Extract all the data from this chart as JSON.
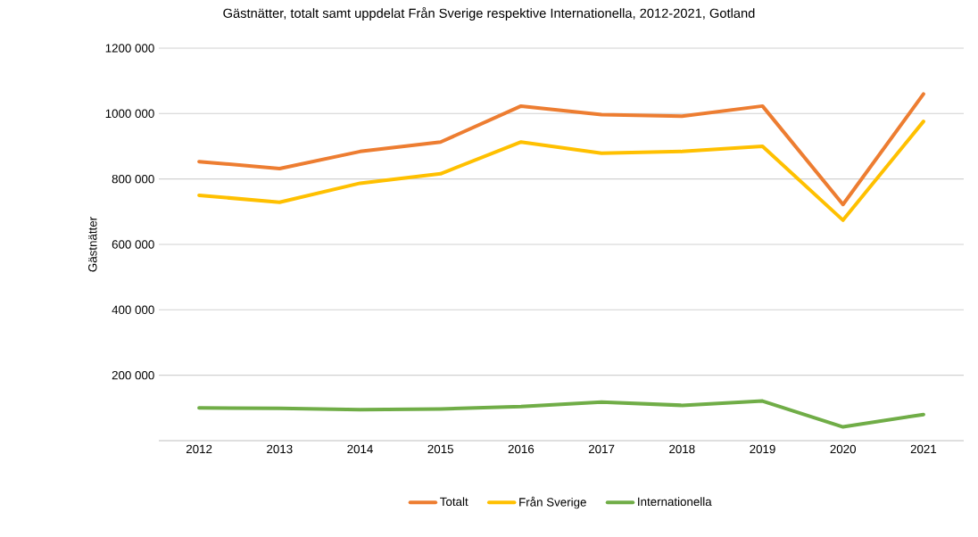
{
  "chart_data": {
    "type": "line",
    "title": "Gästnätter, totalt samt uppdelat Från Sverige respektive Internationella, 2012-2021, Gotland",
    "ylabel": "Gästnätter",
    "categories": [
      "2012",
      "2013",
      "2014",
      "2015",
      "2016",
      "2017",
      "2018",
      "2019",
      "2020",
      "2021"
    ],
    "series": [
      {
        "name": "Totalt",
        "color": "#ed7d31",
        "values": [
          853000,
          832000,
          884000,
          913000,
          1023000,
          997000,
          992000,
          1023000,
          722000,
          1060000
        ]
      },
      {
        "name": "Från Sverige",
        "color": "#ffc000",
        "values": [
          750000,
          729000,
          787000,
          816000,
          913000,
          879000,
          884000,
          900000,
          674000,
          976000
        ]
      },
      {
        "name": "Internationella",
        "color": "#70ad47",
        "values": [
          100000,
          99000,
          95000,
          97000,
          104000,
          118000,
          108000,
          121000,
          42000,
          80000
        ]
      }
    ],
    "ylim": [
      0,
      1200000
    ],
    "yticks": [
      {
        "value": 200000,
        "label": "200 000"
      },
      {
        "value": 400000,
        "label": "400 000"
      },
      {
        "value": 600000,
        "label": "600 000"
      },
      {
        "value": 800000,
        "label": "800 000"
      },
      {
        "value": 1000000,
        "label": "1000 000"
      },
      {
        "value": 1200000,
        "label": "1200 000"
      }
    ],
    "grid": "y",
    "legend": "bottom",
    "marker": "none",
    "line_style": "solid"
  }
}
